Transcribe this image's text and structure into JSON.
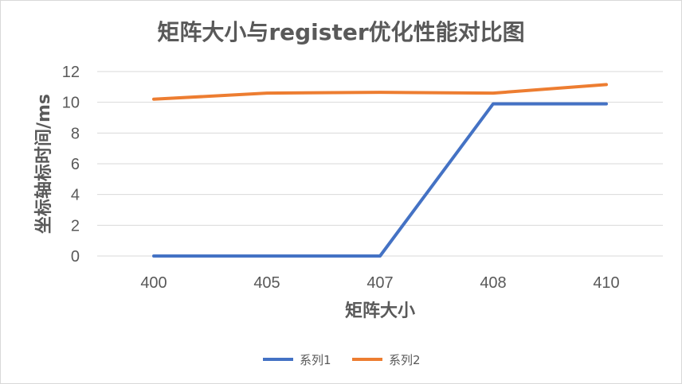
{
  "chart_data": {
    "type": "line",
    "title": "矩阵大小与register优化性能对比图",
    "xlabel": "矩阵大小",
    "ylabel": "坐标轴标时间/ms",
    "categories": [
      "400",
      "405",
      "407",
      "408",
      "410"
    ],
    "ylim": [
      0,
      12
    ],
    "yticks": [
      0,
      2,
      4,
      6,
      8,
      10,
      12
    ],
    "grid": true,
    "legend_position": "bottom",
    "series": [
      {
        "name": "系列1",
        "color": "#4472c4",
        "values": [
          0,
          0,
          0,
          9.9,
          9.9
        ]
      },
      {
        "name": "系列2",
        "color": "#ed7d31",
        "values": [
          10.2,
          10.6,
          10.65,
          10.6,
          11.15
        ]
      }
    ]
  }
}
